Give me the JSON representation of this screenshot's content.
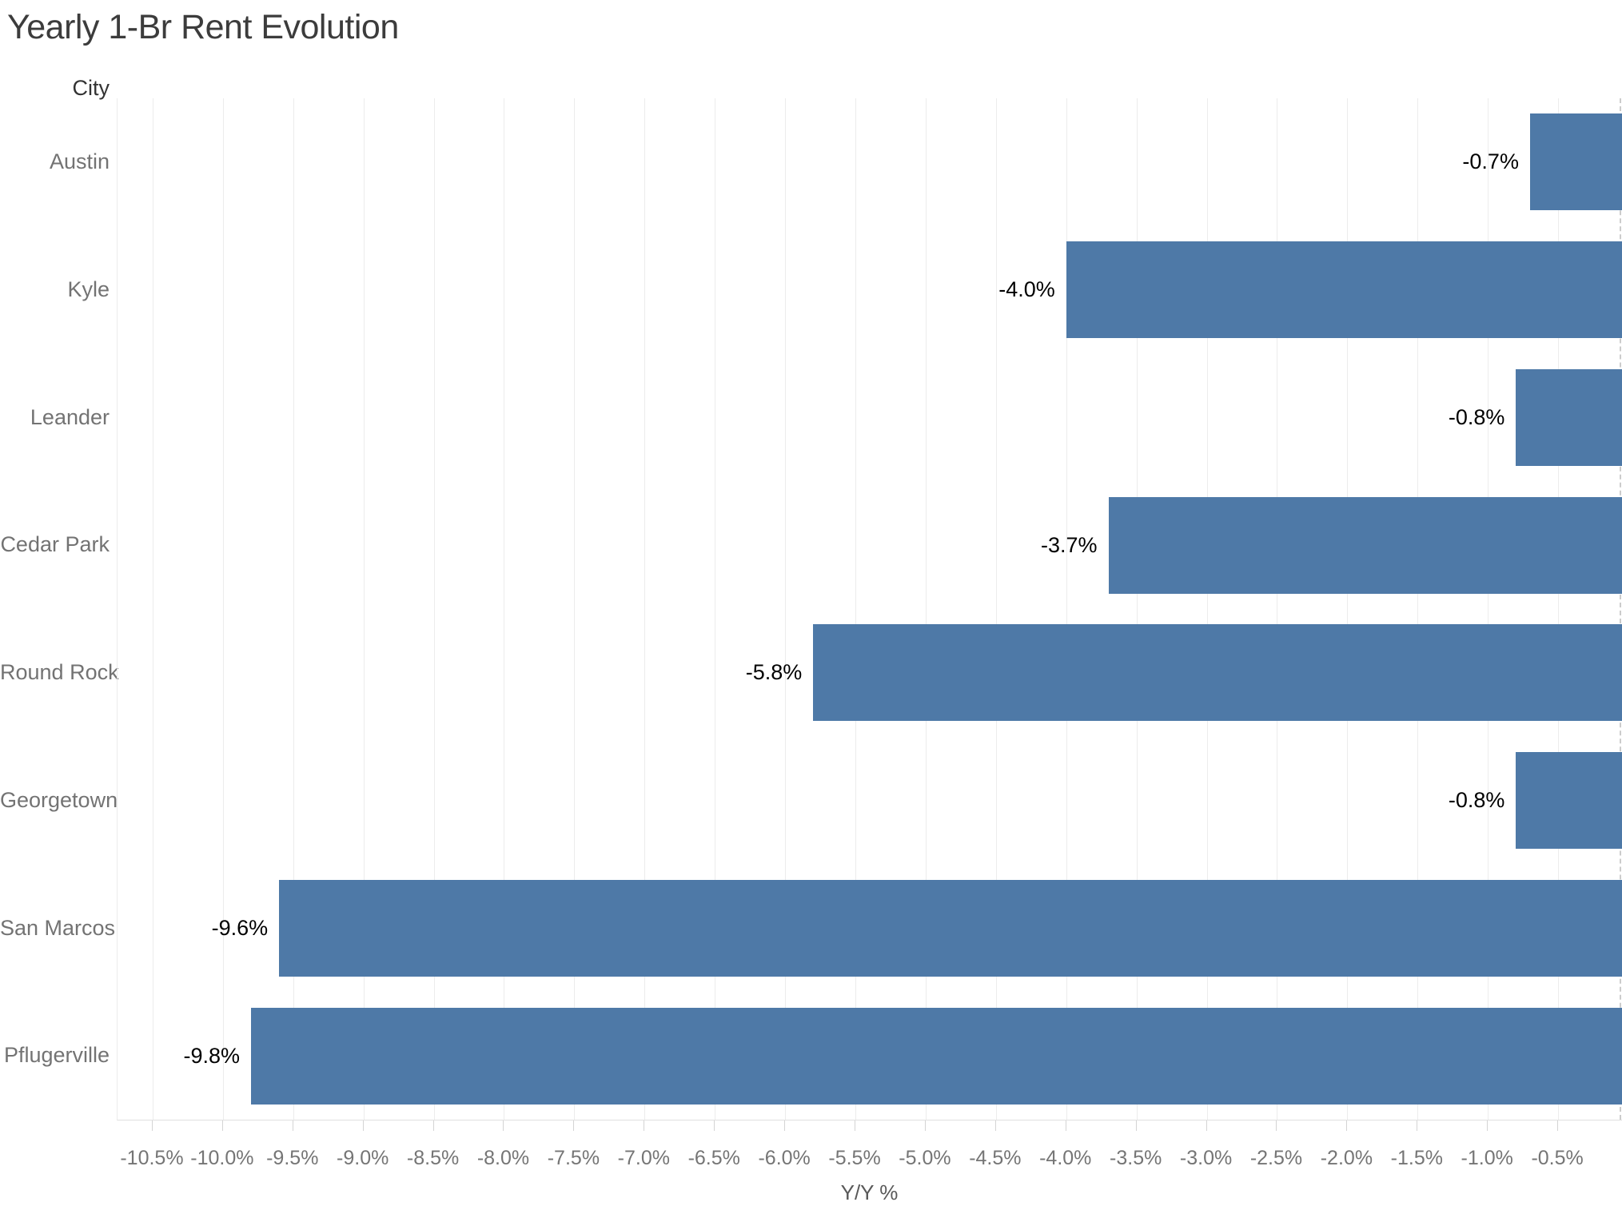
{
  "title": "Yearly 1-Br Rent Evolution",
  "row_header": "City",
  "axis": {
    "xlabel": "Y/Y %"
  },
  "colors": {
    "bar": "#4e79a7",
    "gridline": "#ececec",
    "title_text": "#3c3c3c",
    "city_label_text": "#737373",
    "tick_label_text": "#757575",
    "value_label_text": "#000000"
  },
  "chart_data": {
    "type": "bar",
    "orientation": "horizontal",
    "title": "Yearly 1-Br Rent Evolution",
    "xlabel": "Y/Y %",
    "ylabel": "City",
    "categories": [
      "Austin",
      "Kyle",
      "Leander",
      "Cedar Park",
      "Round Rock",
      "Georgetown",
      "San Marcos",
      "Pflugerville"
    ],
    "values": [
      -0.7,
      -4.0,
      -0.8,
      -3.7,
      -5.8,
      -0.8,
      -9.6,
      -9.8
    ],
    "value_labels": [
      "-0.7%",
      "-4.0%",
      "-0.8%",
      "-3.7%",
      "-5.8%",
      "-0.8%",
      "-9.6%",
      "-9.8%"
    ],
    "x_ticks": [
      -10.5,
      -10.0,
      -9.5,
      -9.0,
      -8.5,
      -8.0,
      -7.5,
      -7.0,
      -6.5,
      -6.0,
      -5.5,
      -5.0,
      -4.5,
      -4.0,
      -3.5,
      -3.0,
      -2.5,
      -2.0,
      -1.5,
      -1.0,
      -0.5
    ],
    "x_tick_labels": [
      "-10.5%",
      "-10.0%",
      "-9.5%",
      "-9.0%",
      "-8.5%",
      "-8.0%",
      "-7.5%",
      "-7.0%",
      "-6.5%",
      "-6.0%",
      "-5.5%",
      "-5.0%",
      "-4.5%",
      "-4.0%",
      "-3.5%",
      "-3.0%",
      "-2.5%",
      "-2.0%",
      "-1.5%",
      "-1.0%",
      "-0.5%"
    ],
    "x_visible_range": [
      -10.75,
      -0.04
    ],
    "grid": true,
    "legend": false,
    "clipped_at_right_edge": true
  }
}
